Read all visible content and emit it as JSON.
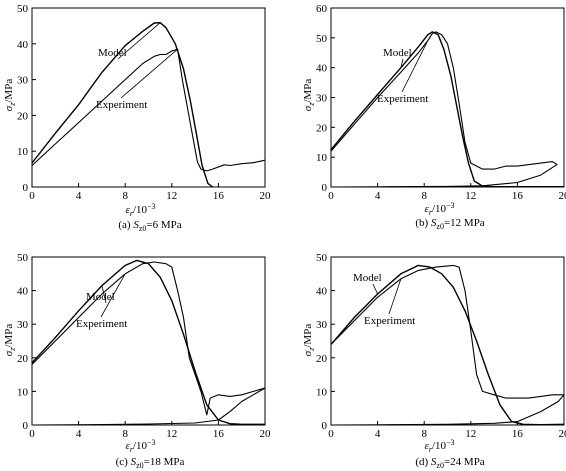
{
  "chart_data": [
    {
      "type": "line",
      "caption_prefix": "(a) ",
      "caption_stress": "=6 MPa",
      "xlabel": "/10",
      "xlabel_exp": "−3",
      "ylabel": "/MPa",
      "xlim": [
        0,
        20
      ],
      "ylim": [
        0,
        50
      ],
      "xticks": [
        "0",
        "4",
        "8",
        "12",
        "16",
        "20"
      ],
      "yticks": [
        "0",
        "10",
        "20",
        "30",
        "40",
        "50"
      ],
      "labels": {
        "model": "Model",
        "experiment": "Experiment"
      },
      "series": [
        {
          "name": "Model",
          "points": [
            [
              0,
              6.7
            ],
            [
              2,
              15
            ],
            [
              4,
              23
            ],
            [
              6,
              32
            ],
            [
              8,
              39.5
            ],
            [
              9.5,
              43.5
            ],
            [
              10.5,
              45.8
            ],
            [
              11,
              45.9
            ],
            [
              11.5,
              44.5
            ],
            [
              12.3,
              40
            ],
            [
              13,
              33
            ],
            [
              13.6,
              24
            ],
            [
              14.1,
              15
            ],
            [
              14.6,
              6
            ],
            [
              15.1,
              1
            ],
            [
              15.5,
              0
            ]
          ]
        },
        {
          "name": "Experiment",
          "points": [
            [
              0,
              6
            ],
            [
              2,
              12
            ],
            [
              4,
              18
            ],
            [
              6,
              24
            ],
            [
              8,
              30
            ],
            [
              9.5,
              34.5
            ],
            [
              10.5,
              36.5
            ],
            [
              11,
              37
            ],
            [
              11.5,
              37
            ],
            [
              12,
              38
            ],
            [
              12.5,
              38.5
            ],
            [
              12.9,
              30
            ],
            [
              13.3,
              23
            ],
            [
              13.8,
              14
            ],
            [
              14.2,
              7
            ],
            [
              14.5,
              5
            ],
            [
              15,
              4.5
            ],
            [
              15.5,
              5
            ],
            [
              16.5,
              6.2
            ],
            [
              17,
              6
            ],
            [
              18,
              6.5
            ],
            [
              19,
              6.8
            ],
            [
              20,
              7.5
            ]
          ]
        }
      ]
    },
    {
      "type": "line",
      "caption_prefix": "(b) ",
      "caption_stress": "=12 MPa",
      "xlabel": "/10",
      "xlabel_exp": "−3",
      "ylabel": "/MPa",
      "xlim": [
        0,
        20
      ],
      "ylim": [
        0,
        60
      ],
      "xticks": [
        "0",
        "4",
        "8",
        "12",
        "16",
        "20"
      ],
      "yticks": [
        "0",
        "10",
        "20",
        "30",
        "40",
        "50",
        "60"
      ],
      "labels": {
        "model": "Model",
        "experiment": "Experiment"
      },
      "series": [
        {
          "name": "Model",
          "points": [
            [
              0,
              12.5
            ],
            [
              2,
              22
            ],
            [
              4,
              31
            ],
            [
              6,
              40
            ],
            [
              7.5,
              47
            ],
            [
              8.3,
              51
            ],
            [
              8.7,
              52
            ],
            [
              9.2,
              51
            ],
            [
              9.7,
              46
            ],
            [
              10.3,
              37
            ],
            [
              10.8,
              27
            ],
            [
              11.3,
              17
            ],
            [
              11.8,
              8
            ],
            [
              12.3,
              2
            ],
            [
              13,
              0.3
            ],
            [
              14,
              0.1
            ],
            [
              20,
              0.1
            ]
          ]
        },
        {
          "name": "Experiment",
          "points": [
            [
              0,
              12
            ],
            [
              2,
              21
            ],
            [
              4,
              30
            ],
            [
              6,
              38.5
            ],
            [
              7.5,
              45
            ],
            [
              8.3,
              49
            ],
            [
              8.7,
              51.5
            ],
            [
              9,
              52
            ],
            [
              9.5,
              51
            ],
            [
              10,
              48
            ],
            [
              10.5,
              40
            ],
            [
              11,
              28
            ],
            [
              11.5,
              15
            ],
            [
              12,
              8
            ],
            [
              13,
              6
            ],
            [
              14,
              6
            ],
            [
              15,
              7
            ],
            [
              16,
              7
            ],
            [
              17,
              7.5
            ],
            [
              18,
              8
            ],
            [
              19,
              8.5
            ],
            [
              19.4,
              7.5
            ],
            [
              18,
              4
            ],
            [
              16,
              1.5
            ],
            [
              13,
              0.4
            ],
            [
              10,
              0.2
            ],
            [
              5,
              0.1
            ],
            [
              0,
              0
            ]
          ]
        }
      ]
    },
    {
      "type": "line",
      "caption_prefix": "(c) ",
      "caption_stress": "=18 MPa",
      "xlabel": "/10",
      "xlabel_exp": "−3",
      "ylabel": "/MPa",
      "xlim": [
        0,
        20
      ],
      "ylim": [
        0,
        50
      ],
      "xticks": [
        "0",
        "4",
        "8",
        "12",
        "16",
        "20"
      ],
      "yticks": [
        "0",
        "10",
        "20",
        "30",
        "40",
        "50"
      ],
      "labels": {
        "model": "Model",
        "experiment": "Experiment"
      },
      "series": [
        {
          "name": "Model",
          "points": [
            [
              0,
              18.5
            ],
            [
              2,
              26
            ],
            [
              4,
              34
            ],
            [
              6,
              41.5
            ],
            [
              8,
              47.5
            ],
            [
              9,
              49
            ],
            [
              10,
              48
            ],
            [
              11,
              44
            ],
            [
              12,
              37
            ],
            [
              13,
              27
            ],
            [
              14,
              16
            ],
            [
              15,
              6
            ],
            [
              16,
              1.5
            ],
            [
              17,
              0.4
            ],
            [
              18,
              0.2
            ],
            [
              20,
              0.2
            ]
          ]
        },
        {
          "name": "Experiment",
          "points": [
            [
              0,
              18
            ],
            [
              2,
              25
            ],
            [
              4,
              32
            ],
            [
              6,
              39
            ],
            [
              8,
              45
            ],
            [
              9.5,
              48
            ],
            [
              10.5,
              48.5
            ],
            [
              11.5,
              48
            ],
            [
              12,
              47
            ],
            [
              12.5,
              40
            ],
            [
              13,
              32
            ],
            [
              13.5,
              20
            ],
            [
              14,
              15
            ],
            [
              14.5,
              10
            ],
            [
              15,
              3
            ],
            [
              15.3,
              8
            ],
            [
              16,
              9
            ],
            [
              17,
              8.5
            ],
            [
              18,
              9
            ],
            [
              19,
              10
            ],
            [
              20,
              11
            ],
            [
              19,
              9
            ],
            [
              18,
              7
            ],
            [
              17,
              4
            ],
            [
              16,
              1.5
            ],
            [
              14,
              0.6
            ],
            [
              10,
              0.3
            ],
            [
              5,
              0.1
            ],
            [
              0,
              0
            ]
          ]
        }
      ]
    },
    {
      "type": "line",
      "caption_prefix": "(d) ",
      "caption_stress": "=24 MPa",
      "xlabel": "/10",
      "xlabel_exp": "−3",
      "ylabel": "/MPa",
      "xlim": [
        0,
        20
      ],
      "ylim": [
        0,
        50
      ],
      "xticks": [
        "0",
        "4",
        "8",
        "12",
        "16",
        "20"
      ],
      "yticks": [
        "0",
        "10",
        "20",
        "30",
        "40",
        "50"
      ],
      "labels": {
        "model": "Model",
        "experiment": "Experiment"
      },
      "series": [
        {
          "name": "Model",
          "points": [
            [
              0,
              24
            ],
            [
              2,
              32
            ],
            [
              4,
              39
            ],
            [
              6,
              45
            ],
            [
              7.5,
              47.5
            ],
            [
              8.5,
              47
            ],
            [
              9.5,
              45
            ],
            [
              10.5,
              41
            ],
            [
              11.5,
              34
            ],
            [
              12.5,
              25
            ],
            [
              13.5,
              15
            ],
            [
              14.5,
              6
            ],
            [
              15.5,
              1
            ],
            [
              16.5,
              0.2
            ],
            [
              18,
              0.1
            ],
            [
              20,
              0.2
            ]
          ]
        },
        {
          "name": "Experiment",
          "points": [
            [
              0,
              24
            ],
            [
              2,
              31
            ],
            [
              4,
              38
            ],
            [
              6,
              43.5
            ],
            [
              7.5,
              46
            ],
            [
              9,
              47
            ],
            [
              10.5,
              47.5
            ],
            [
              11,
              47
            ],
            [
              11.5,
              40
            ],
            [
              12,
              28
            ],
            [
              12.5,
              15
            ],
            [
              13,
              10
            ],
            [
              14,
              9
            ],
            [
              15,
              8
            ],
            [
              16,
              8
            ],
            [
              17,
              8
            ],
            [
              18,
              8.5
            ],
            [
              19,
              9
            ],
            [
              20,
              9
            ],
            [
              19.5,
              7
            ],
            [
              18,
              4
            ],
            [
              16,
              1
            ],
            [
              14,
              0.5
            ],
            [
              10,
              0.2
            ],
            [
              5,
              0.1
            ],
            [
              0,
              0
            ]
          ]
        }
      ]
    }
  ]
}
